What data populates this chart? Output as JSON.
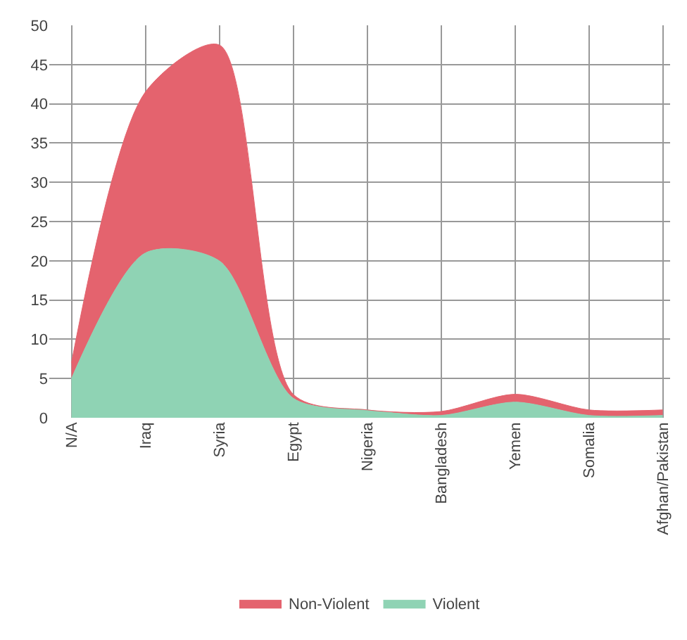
{
  "chart_data": {
    "type": "area",
    "stacked": true,
    "categories": [
      "N/A",
      "Iraq",
      "Syria",
      "Egypt",
      "Nigeria",
      "Bangladesh",
      "Yemen",
      "Somalia",
      "Afghan/Pakistan"
    ],
    "series": [
      {
        "name": "Violent",
        "color": "#8fd3b4",
        "values": [
          5,
          21,
          20,
          2.5,
          1,
          0.3,
          2,
          0.3,
          0.3
        ]
      },
      {
        "name": "Non-Violent",
        "color": "#e4636e",
        "values": [
          2,
          20.5,
          27.5,
          0.5,
          0,
          0.5,
          1,
          0.7,
          0.7
        ]
      }
    ],
    "ylim": [
      0,
      50
    ],
    "yticks": [
      0,
      5,
      10,
      15,
      20,
      25,
      30,
      35,
      40,
      45,
      50
    ],
    "grid": true,
    "legend": "bottom"
  }
}
